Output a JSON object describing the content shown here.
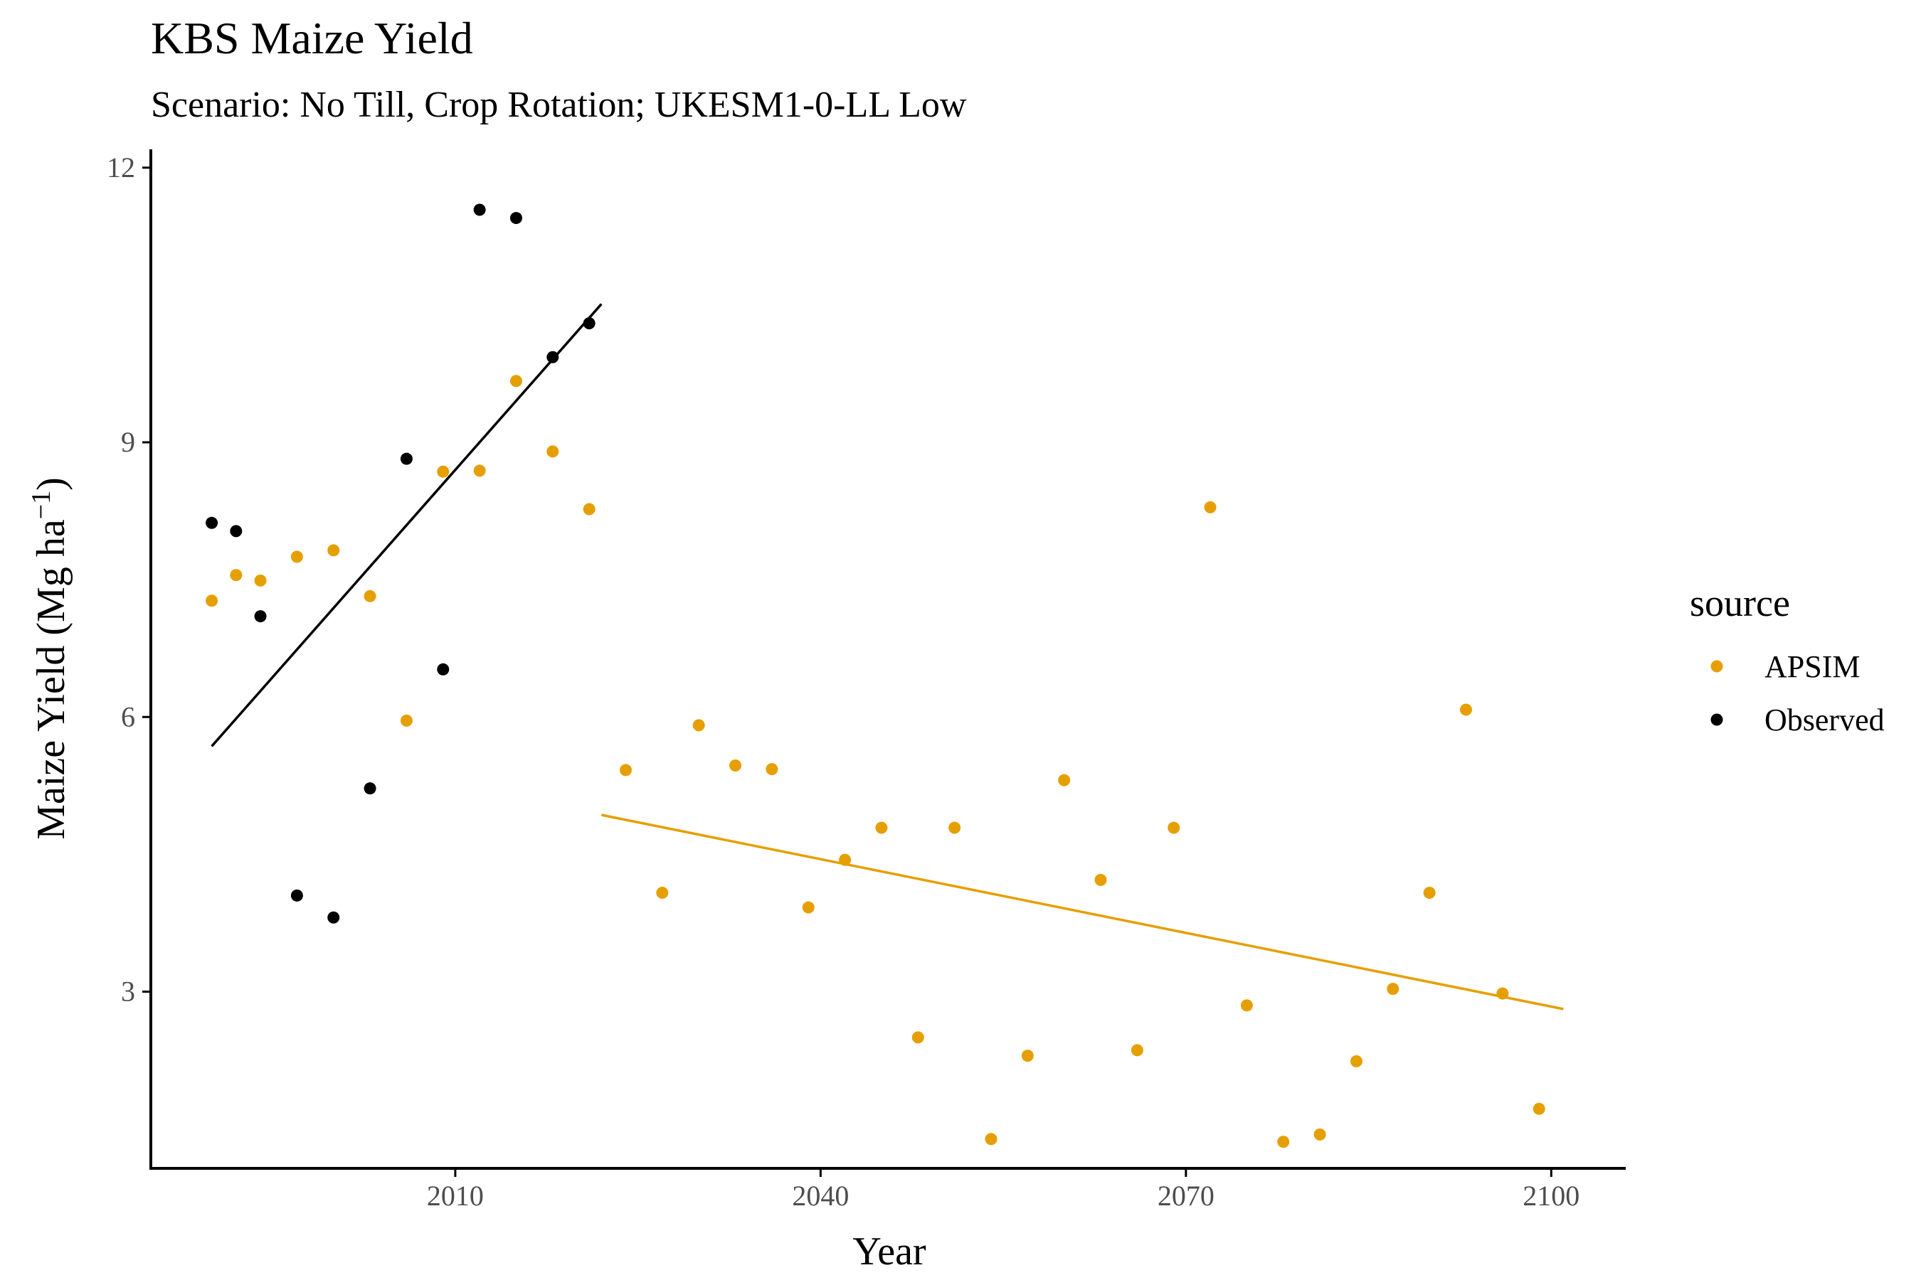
{
  "chart_data": {
    "type": "scatter",
    "title": "KBS Maize Yield",
    "subtitle": "Scenario: No Till, Crop Rotation; UKESM1-0-LL Low",
    "xlabel": "Year",
    "ylabel": "Maize Yield (Mg ha",
    "ylabel_sup": "−1",
    "ylabel_close": ")",
    "xlim": [
      1985,
      2106
    ],
    "ylim": [
      1.07,
      12.2
    ],
    "xticks": [
      2010,
      2040,
      2070,
      2100
    ],
    "yticks": [
      3,
      6,
      9,
      12
    ],
    "grid": false,
    "legend": {
      "title": "source",
      "position": "right"
    },
    "series": [
      {
        "name": "APSIM",
        "color": "#E69F00",
        "points": [
          [
            1990,
            7.27
          ],
          [
            1992,
            7.55
          ],
          [
            1994,
            7.49
          ],
          [
            1997,
            7.75
          ],
          [
            2000,
            7.82
          ],
          [
            2003,
            7.32
          ],
          [
            2006,
            5.96
          ],
          [
            2009,
            8.68
          ],
          [
            2012,
            8.69
          ],
          [
            2015,
            9.67
          ],
          [
            2018,
            8.9
          ],
          [
            2021,
            8.27
          ],
          [
            2024,
            5.42
          ],
          [
            2027,
            4.08
          ],
          [
            2030,
            5.91
          ],
          [
            2033,
            5.47
          ],
          [
            2036,
            5.43
          ],
          [
            2039,
            3.92
          ],
          [
            2042,
            4.44
          ],
          [
            2045,
            4.79
          ],
          [
            2048,
            2.5
          ],
          [
            2051,
            4.79
          ],
          [
            2054,
            1.39
          ],
          [
            2057,
            2.3
          ],
          [
            2060,
            5.31
          ],
          [
            2063,
            4.22
          ],
          [
            2066,
            2.36
          ],
          [
            2069,
            4.79
          ],
          [
            2072,
            8.29
          ],
          [
            2075,
            2.85
          ],
          [
            2078,
            1.36
          ],
          [
            2081,
            1.44
          ],
          [
            2084,
            2.24
          ],
          [
            2087,
            3.03
          ],
          [
            2090,
            4.08
          ],
          [
            2093,
            6.08
          ],
          [
            2096,
            2.98
          ],
          [
            2099,
            1.72
          ]
        ],
        "trend": {
          "x": [
            2022,
            2101
          ],
          "y": [
            4.93,
            2.81
          ]
        }
      },
      {
        "name": "Observed",
        "color": "#000000",
        "points": [
          [
            1990,
            8.12
          ],
          [
            1992,
            8.03
          ],
          [
            1994,
            7.1
          ],
          [
            1997,
            4.05
          ],
          [
            2000,
            3.81
          ],
          [
            2003,
            5.22
          ],
          [
            2006,
            8.82
          ],
          [
            2009,
            6.52
          ],
          [
            2012,
            11.54
          ],
          [
            2015,
            11.45
          ],
          [
            2018,
            9.93
          ],
          [
            2021,
            10.3
          ]
        ],
        "trend": {
          "x": [
            1990,
            2022
          ],
          "y": [
            5.68,
            10.51
          ]
        }
      }
    ]
  }
}
